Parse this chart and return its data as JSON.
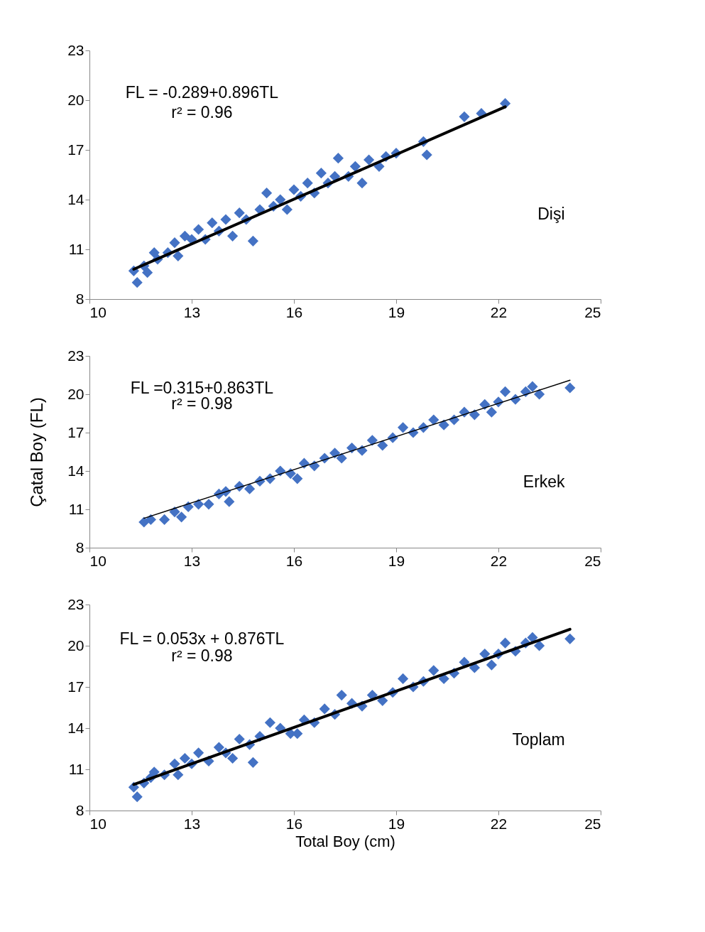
{
  "chart_data": [
    {
      "type": "scatter",
      "marker": "diamond",
      "xlim": [
        10,
        25
      ],
      "ylim": [
        8,
        23
      ],
      "xticks": [
        10,
        13,
        16,
        19,
        22,
        25
      ],
      "yticks": [
        8,
        11,
        14,
        17,
        20,
        23
      ],
      "annotations": [
        "FL = -0.289+0.896TL",
        "r² = 0.96",
        "Dişi"
      ],
      "series": [
        {
          "color": "#4472c4",
          "x": [
            11.3,
            11.4,
            11.6,
            11.7,
            11.9,
            12.0,
            12.3,
            12.5,
            12.6,
            12.8,
            13.0,
            13.2,
            13.4,
            13.6,
            13.8,
            14.0,
            14.2,
            14.4,
            14.6,
            14.8,
            15.0,
            15.2,
            15.4,
            15.6,
            15.8,
            16.0,
            16.2,
            16.4,
            16.6,
            16.8,
            17.0,
            17.2,
            17.3,
            17.6,
            17.8,
            18.0,
            18.2,
            18.5,
            18.7,
            19.0,
            19.8,
            19.9,
            21.0,
            21.5,
            22.2
          ],
          "values": [
            9.7,
            9.0,
            10.0,
            9.6,
            10.8,
            10.4,
            10.8,
            11.4,
            10.6,
            11.8,
            11.6,
            12.2,
            11.6,
            12.6,
            12.1,
            12.8,
            11.8,
            13.2,
            12.8,
            11.5,
            13.4,
            14.4,
            13.6,
            14.0,
            13.4,
            14.6,
            14.2,
            15.0,
            14.4,
            15.6,
            15.0,
            15.4,
            16.5,
            15.4,
            16.0,
            15.0,
            16.4,
            16.0,
            16.6,
            16.8,
            17.5,
            16.7,
            19.0,
            19.2,
            19.8
          ]
        },
        {
          "type": "line",
          "color": "#000000",
          "marker": "none",
          "x": [
            11.3,
            22.2
          ],
          "values": [
            9.8,
            19.6
          ]
        }
      ]
    },
    {
      "type": "scatter",
      "marker": "diamond",
      "xlim": [
        10,
        25
      ],
      "ylim": [
        8,
        23
      ],
      "xticks": [
        10,
        13,
        16,
        19,
        22,
        25
      ],
      "yticks": [
        8,
        11,
        14,
        17,
        20,
        23
      ],
      "ylabel": "Çatal Boy (FL)",
      "annotations": [
        "FL =0.315+0.863TL",
        "r² = 0.98",
        "Erkek"
      ],
      "series": [
        {
          "color": "#4472c4",
          "x": [
            11.6,
            11.8,
            12.2,
            12.5,
            12.7,
            12.9,
            13.2,
            13.5,
            13.8,
            14.0,
            14.1,
            14.4,
            14.7,
            15.0,
            15.3,
            15.6,
            15.9,
            16.1,
            16.3,
            16.6,
            16.9,
            17.2,
            17.4,
            17.7,
            18.0,
            18.3,
            18.6,
            18.9,
            19.2,
            19.5,
            19.8,
            20.1,
            20.4,
            20.7,
            21.0,
            21.3,
            21.6,
            21.8,
            22.0,
            22.2,
            22.5,
            22.8,
            23.0,
            23.2,
            24.1
          ],
          "values": [
            10.0,
            10.2,
            10.2,
            10.8,
            10.4,
            11.2,
            11.4,
            11.4,
            12.2,
            12.4,
            11.6,
            12.8,
            12.6,
            13.2,
            13.4,
            14.0,
            13.8,
            13.4,
            14.6,
            14.4,
            15.0,
            15.4,
            15.0,
            15.8,
            15.6,
            16.4,
            16.0,
            16.6,
            17.4,
            17.0,
            17.4,
            18.0,
            17.6,
            18.0,
            18.6,
            18.4,
            19.2,
            18.6,
            19.4,
            20.2,
            19.6,
            20.2,
            20.6,
            20.0,
            20.5
          ]
        },
        {
          "type": "line",
          "color": "#000000",
          "marker": "none",
          "x": [
            11.6,
            24.1
          ],
          "values": [
            10.3,
            21.1
          ]
        }
      ]
    },
    {
      "type": "scatter",
      "marker": "diamond",
      "xlim": [
        10,
        25
      ],
      "ylim": [
        8,
        23
      ],
      "xticks": [
        10,
        13,
        16,
        19,
        22,
        25
      ],
      "yticks": [
        8,
        11,
        14,
        17,
        20,
        23
      ],
      "xlabel": "Total Boy (cm)",
      "annotations": [
        "FL = 0.053x + 0.876TL",
        "r² = 0.98",
        "Toplam"
      ],
      "series": [
        {
          "color": "#4472c4",
          "x": [
            11.3,
            11.4,
            11.6,
            11.8,
            11.9,
            12.2,
            12.5,
            12.6,
            12.8,
            13.0,
            13.2,
            13.5,
            13.8,
            14.0,
            14.2,
            14.4,
            14.7,
            14.8,
            15.0,
            15.3,
            15.6,
            15.9,
            16.1,
            16.3,
            16.6,
            16.9,
            17.2,
            17.4,
            17.7,
            18.0,
            18.3,
            18.6,
            18.9,
            19.2,
            19.5,
            19.8,
            20.1,
            20.4,
            20.7,
            21.0,
            21.3,
            21.6,
            21.8,
            22.0,
            22.2,
            22.5,
            22.8,
            23.0,
            23.2,
            24.1
          ],
          "values": [
            9.7,
            9.0,
            10.0,
            10.4,
            10.8,
            10.6,
            11.4,
            10.6,
            11.8,
            11.4,
            12.2,
            11.6,
            12.6,
            12.2,
            11.8,
            13.2,
            12.8,
            11.5,
            13.4,
            14.4,
            14.0,
            13.6,
            13.6,
            14.6,
            14.4,
            15.4,
            15.0,
            16.4,
            15.8,
            15.6,
            16.4,
            16.0,
            16.6,
            17.6,
            17.0,
            17.4,
            18.2,
            17.6,
            18.0,
            18.8,
            18.4,
            19.4,
            18.6,
            19.4,
            20.2,
            19.6,
            20.2,
            20.6,
            20.0,
            20.5
          ]
        },
        {
          "type": "line",
          "color": "#000000",
          "marker": "none",
          "x": [
            11.3,
            24.1
          ],
          "values": [
            9.9,
            21.2
          ]
        }
      ]
    }
  ]
}
